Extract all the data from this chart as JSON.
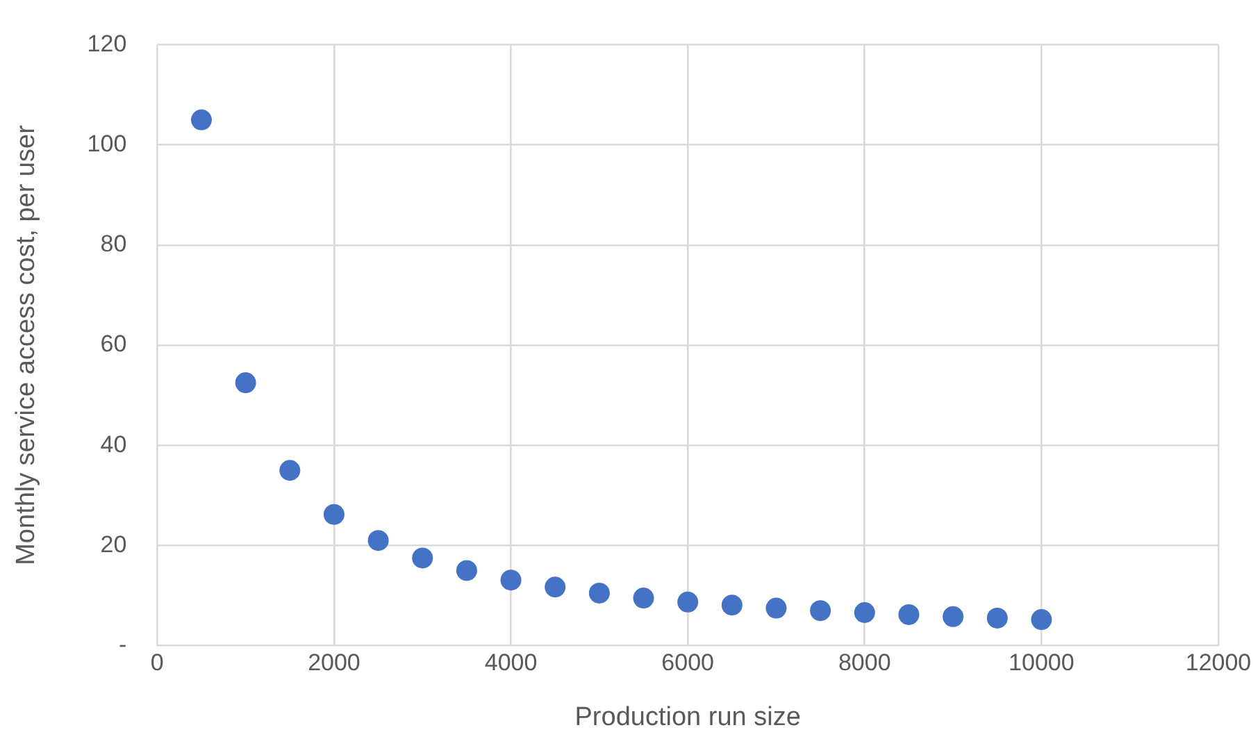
{
  "chart_data": {
    "type": "scatter",
    "xlabel": "Production run size",
    "ylabel": "Monthly service access cost, per user",
    "x": [
      500,
      1000,
      1500,
      2000,
      2500,
      3000,
      3500,
      4000,
      4500,
      5000,
      5500,
      6000,
      6500,
      7000,
      7500,
      8000,
      8500,
      9000,
      9500,
      10000
    ],
    "series": [
      {
        "color": "#4472c4",
        "values": [
          105,
          52.5,
          35,
          26.2,
          21,
          17.5,
          15,
          13.1,
          11.7,
          10.5,
          9.5,
          8.7,
          8.1,
          7.5,
          7,
          6.6,
          6.2,
          5.8,
          5.5,
          5.2
        ]
      }
    ],
    "xlim": [
      0,
      12000
    ],
    "xticks": [
      0,
      2000,
      4000,
      6000,
      8000,
      10000,
      12000
    ],
    "ylim": [
      0,
      120
    ],
    "yticks": [
      {
        "value": 0,
        "label": "-"
      },
      20,
      40,
      60,
      80,
      100,
      120
    ],
    "grid": true,
    "legend": false,
    "marker": "circle"
  }
}
